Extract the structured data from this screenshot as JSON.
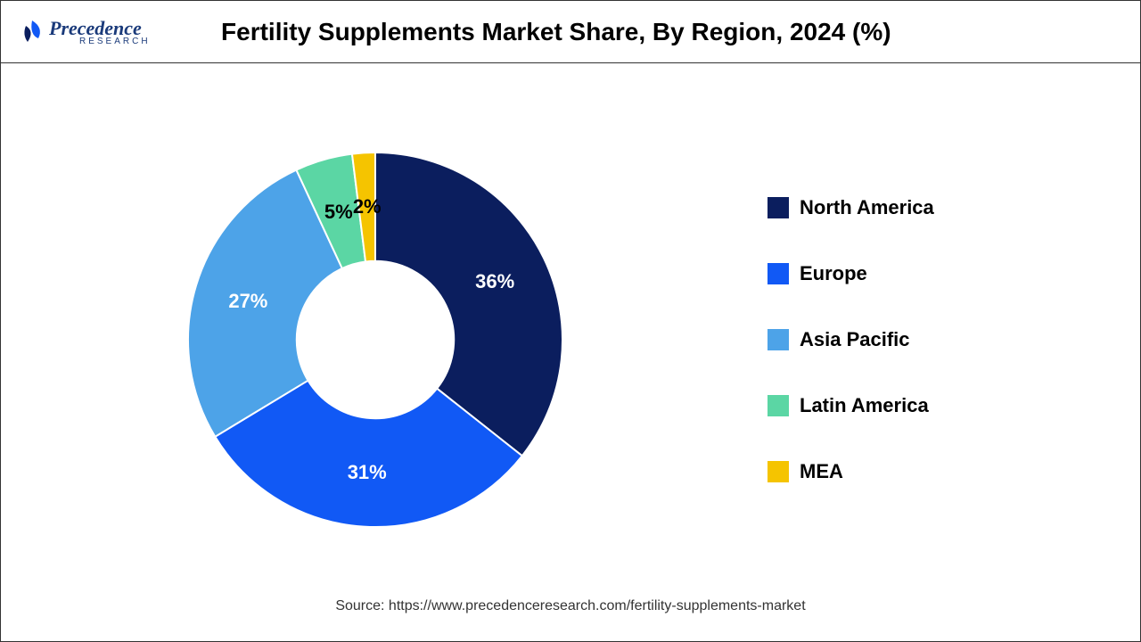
{
  "logo": {
    "text": "Precedence",
    "subtext": "RESEARCH"
  },
  "title": "Fertility Supplements Market Share, By Region, 2024 (%)",
  "source": "Source: https://www.precedenceresearch.com/fertility-supplements-market",
  "chart": {
    "type": "donut",
    "inner_radius_ratio": 0.42,
    "start_angle_deg": 0,
    "slices": [
      {
        "label": "North America",
        "value": 36,
        "color": "#0b1e5e",
        "label_color": "#ffffff"
      },
      {
        "label": "Europe",
        "value": 31,
        "color": "#1159f5",
        "label_color": "#ffffff"
      },
      {
        "label": "Asia Pacific",
        "value": 27,
        "color": "#4da3e8",
        "label_color": "#ffffff"
      },
      {
        "label": "Latin America",
        "value": 5,
        "color": "#5bd6a4",
        "label_color": "#000000"
      },
      {
        "label": "MEA",
        "value": 2,
        "color": "#f5c400",
        "label_color": "#000000"
      }
    ],
    "label_fontsize": 22,
    "label_fontweight": "bold",
    "legend_fontsize": 22
  }
}
